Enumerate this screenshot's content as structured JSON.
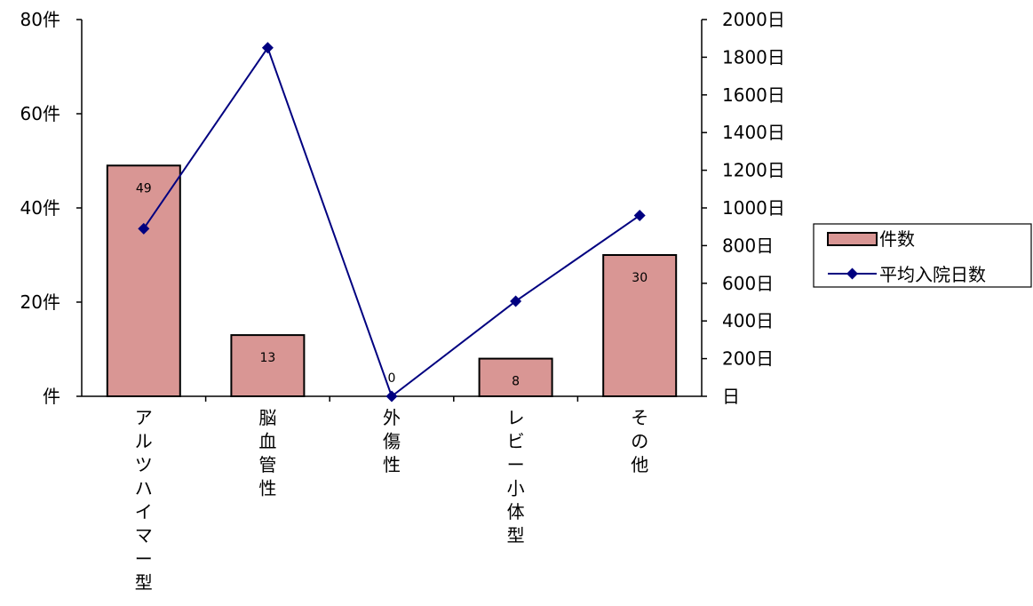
{
  "chart_data": {
    "type": "bar",
    "categories": [
      "アルツハイマー型",
      "脳血管性",
      "外傷性",
      "レビー小体型",
      "その他"
    ],
    "series": [
      {
        "name": "件数",
        "type": "bar",
        "axis": "left",
        "values": [
          49,
          13,
          0,
          8,
          30
        ],
        "data_labels": [
          "49",
          "13",
          "0",
          "8",
          "30"
        ],
        "color": "#d99694"
      },
      {
        "name": "平均入院日数",
        "type": "line",
        "axis": "right",
        "values": [
          890,
          1850,
          0,
          505,
          960
        ],
        "color": "#000080"
      }
    ],
    "y_left": {
      "ylim": [
        0,
        80
      ],
      "ticks": [
        0,
        20,
        40,
        60,
        80
      ],
      "tick_labels": [
        "件",
        "20件",
        "40件",
        "60件",
        "80件"
      ]
    },
    "y_right": {
      "ylim": [
        0,
        2000
      ],
      "ticks": [
        0,
        200,
        400,
        600,
        800,
        1000,
        1200,
        1400,
        1600,
        1800,
        2000
      ],
      "tick_labels": [
        "日",
        "200日",
        "400日",
        "600日",
        "800日",
        "1000日",
        "1200日",
        "1400日",
        "1600日",
        "1800日",
        "2000日"
      ]
    },
    "legend": {
      "position": "right",
      "items": [
        "件数",
        "平均入院日数"
      ]
    },
    "grid": false
  }
}
